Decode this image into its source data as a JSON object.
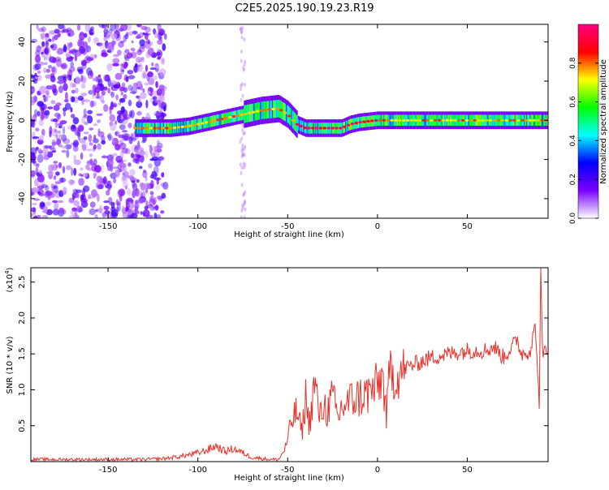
{
  "figure_title": "C2E5.2025.190.19.23.R19",
  "chart_data": [
    {
      "type": "heatmap",
      "xlabel": "Height of straight line (km)",
      "ylabel": "Frequency (Hz)",
      "xlim": [
        -193,
        95
      ],
      "ylim": [
        -50,
        49
      ],
      "x_ticks": [
        -150,
        -100,
        -50,
        0,
        50
      ],
      "y_ticks": [
        -40,
        -20,
        0,
        20,
        40
      ],
      "colorbar": {
        "label": "Normalized spectral amplitude",
        "range": [
          0,
          1
        ],
        "ticks": [
          "0.0",
          "0.2",
          "0.4",
          "0.6",
          "0.8"
        ],
        "colors": [
          "#ffffff",
          "#7a00ff",
          "#0000ff",
          "#00ffff",
          "#00ff00",
          "#ffff00",
          "#ff0000",
          "#ff0080"
        ]
      },
      "ridge": {
        "x": [
          -135,
          -125,
          -115,
          -105,
          -95,
          -85,
          -75,
          -65,
          -55,
          -50,
          -45,
          -40,
          -30,
          -20,
          -15,
          -10,
          0,
          10,
          20,
          30,
          40,
          50,
          60,
          70,
          80,
          90,
          95
        ],
        "freq_hz": [
          -4,
          -4,
          -4,
          -3,
          -1,
          1,
          3,
          5,
          6,
          3,
          -2,
          -4,
          -4,
          -4,
          -2,
          -1,
          0,
          0,
          0,
          0,
          0,
          0,
          0,
          0,
          0,
          0,
          0
        ]
      }
    },
    {
      "type": "line",
      "xlabel": "Height of straight line (km)",
      "ylabel": "SNR (10 * v/v)",
      "y_scale_label": "(x10",
      "y_scale_exp": "4",
      "xlim": [
        -193,
        95
      ],
      "ylim": [
        0,
        2.7
      ],
      "x_ticks": [
        -150,
        -100,
        -50,
        0,
        50
      ],
      "y_ticks": [
        "0.5",
        "1.0",
        "1.5",
        "2.0",
        "2.5"
      ],
      "series": [
        {
          "color": "#e8312a",
          "x": [
            -193,
            -150,
            -130,
            -120,
            -110,
            -100,
            -95,
            -90,
            -85,
            -80,
            -75,
            -70,
            -60,
            -55,
            -52,
            -50,
            -48,
            -45,
            -42,
            -40,
            -38,
            -35,
            -32,
            -30,
            -28,
            -25,
            -22,
            -20,
            -15,
            -10,
            -5,
            0,
            3,
            5,
            7,
            10,
            15,
            20,
            25,
            30,
            40,
            50,
            60,
            65,
            70,
            75,
            78,
            80,
            85,
            88,
            90,
            91,
            92,
            93,
            95
          ],
          "y": [
            0.03,
            0.03,
            0.03,
            0.04,
            0.07,
            0.12,
            0.16,
            0.22,
            0.14,
            0.18,
            0.12,
            0.06,
            0.03,
            0.03,
            0.15,
            0.3,
            0.55,
            0.7,
            0.4,
            0.9,
            0.5,
            1.1,
            0.6,
            0.8,
            0.7,
            0.9,
            0.6,
            0.75,
            0.85,
            0.9,
            0.95,
            1.05,
            1.2,
            0.6,
            1.3,
            1.15,
            1.3,
            1.35,
            1.4,
            1.45,
            1.5,
            1.55,
            1.55,
            1.6,
            1.45,
            1.6,
            1.7,
            1.5,
            1.55,
            1.9,
            0.75,
            2.7,
            1.3,
            1.6,
            1.55
          ]
        }
      ]
    }
  ]
}
